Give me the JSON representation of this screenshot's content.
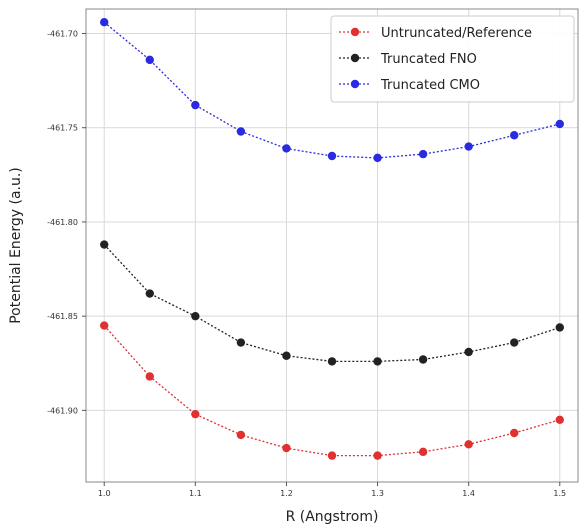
{
  "chart_data": {
    "type": "line",
    "xlabel": "R (Angstrom)",
    "ylabel": "Potential Energy (a.u.)",
    "x": [
      1.0,
      1.05,
      1.1,
      1.15,
      1.2,
      1.25,
      1.3,
      1.35,
      1.4,
      1.45,
      1.5
    ],
    "x_tick_values": [
      1.0,
      1.1,
      1.2,
      1.3,
      1.4,
      1.5
    ],
    "x_tick_labels": [
      "1.0",
      "1.1",
      "1.2",
      "1.3",
      "1.4",
      "1.5"
    ],
    "y_tick_values": [
      -461.7,
      -461.75,
      -461.8,
      -461.85,
      -461.9
    ],
    "y_tick_labels": [
      "-461.70",
      "-461.75",
      "-461.80",
      "-461.85",
      "-461.90"
    ],
    "xlim": [
      0.98,
      1.52
    ],
    "ylim": [
      -461.938,
      -461.687
    ],
    "grid": true,
    "legend_position": "top-right",
    "series": [
      {
        "name": "Untruncated/Reference",
        "color": "#e03030",
        "values": [
          -461.855,
          -461.882,
          -461.902,
          -461.913,
          -461.92,
          -461.924,
          -461.924,
          -461.922,
          -461.918,
          -461.912,
          -461.905
        ]
      },
      {
        "name": "Truncated FNO",
        "color": "#222222",
        "values": [
          -461.812,
          -461.838,
          -461.85,
          -461.864,
          -461.871,
          -461.874,
          -461.874,
          -461.873,
          -461.869,
          -461.864,
          -461.856
        ]
      },
      {
        "name": "Truncated CMO",
        "color": "#2a2ae0",
        "values": [
          -461.694,
          -461.714,
          -461.738,
          -461.752,
          -461.761,
          -461.765,
          -461.766,
          -461.764,
          -461.76,
          -461.754,
          -461.748
        ]
      }
    ]
  }
}
